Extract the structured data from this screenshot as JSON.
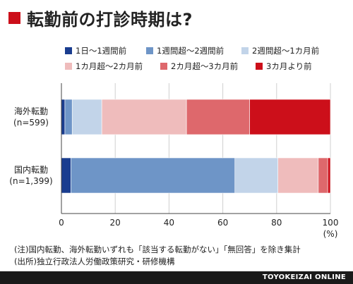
{
  "title": "転勤前の打診時期は?",
  "chart_data": {
    "type": "bar",
    "orientation": "horizontal",
    "stacked": true,
    "categories": [
      [
        "海外転勤",
        "(n=599)"
      ],
      [
        "国内転勤",
        "(n=1,399)"
      ]
    ],
    "series": [
      {
        "name": "1日〜1週間前",
        "color": "#1a3d8f",
        "values": [
          1.3,
          3.5
        ]
      },
      {
        "name": "1週間超〜2週間前",
        "color": "#6e95c7",
        "values": [
          2.7,
          61.0
        ]
      },
      {
        "name": "2週間超〜1カ月前",
        "color": "#c2d4e9",
        "values": [
          11.0,
          16.0
        ]
      },
      {
        "name": "1カ月超〜2カ月前",
        "color": "#efbcbc",
        "values": [
          31.5,
          15.0
        ]
      },
      {
        "name": "2カ月超〜3カ月前",
        "color": "#de686c",
        "values": [
          23.5,
          3.5
        ]
      },
      {
        "name": "3カ月より前",
        "color": "#cc0f1a",
        "values": [
          30.0,
          1.0
        ]
      }
    ],
    "xlim": [
      0,
      100
    ],
    "xticks": [
      "0",
      "20",
      "40",
      "60",
      "80",
      "100"
    ],
    "unit": "(%)",
    "legend_position": "top"
  },
  "notes": [
    "(注)国内転勤、海外転勤いずれも「該当する転勤がない」「無回答」を除き集計",
    "(出所)独立行政法人労働政策研究・研修機構"
  ],
  "footer": "TOYOKEIZAI ONLINE"
}
